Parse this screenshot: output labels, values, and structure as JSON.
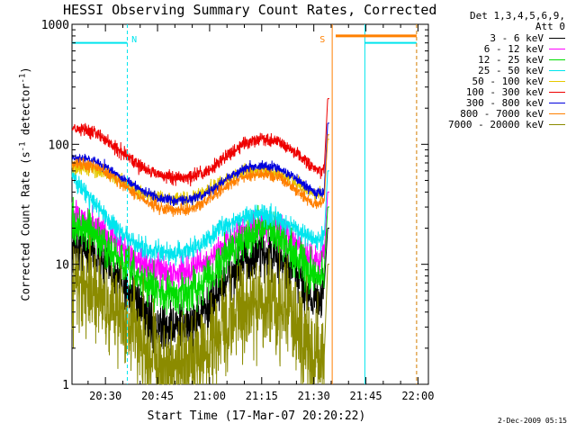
{
  "chart_data": {
    "type": "line",
    "title": "HESSI Observing Summary Count Rates, Corrected",
    "xlabel": "Start Time (17-Mar-07 20:20:22)",
    "ylabel_main": "Corrected Count Rate (s",
    "ylabel_sup1": "-1",
    "ylabel_mid": " detector",
    "ylabel_sup2": "-1",
    "ylabel_end": ")",
    "y_scale": "log",
    "ylim": [
      1,
      1000
    ],
    "xlim_minutes": [
      20.37,
      123.0
    ],
    "x_ticks": [
      {
        "label": "20:30",
        "min": 30
      },
      {
        "label": "20:45",
        "min": 45
      },
      {
        "label": "21:00",
        "min": 60
      },
      {
        "label": "21:15",
        "min": 75
      },
      {
        "label": "21:30",
        "min": 90
      },
      {
        "label": "21:45",
        "min": 105
      },
      {
        "label": "22:00",
        "min": 120
      }
    ],
    "y_ticks": [
      {
        "label": "1",
        "value": 1
      },
      {
        "label": "10",
        "value": 10
      },
      {
        "label": "100",
        "value": 100
      },
      {
        "label": "1000",
        "value": 1000
      }
    ],
    "legend_header": [
      "Det 1,3,4,5,6,9,",
      "Att 0"
    ],
    "series": [
      {
        "name": "3 - 6 keV",
        "color": "#000000",
        "m": [
          [
            20.4,
            14
          ],
          [
            26,
            13
          ],
          [
            30,
            10
          ],
          [
            35,
            7
          ],
          [
            40,
            4
          ],
          [
            45,
            3
          ],
          [
            50,
            3
          ],
          [
            55,
            3.2
          ],
          [
            60,
            4.5
          ],
          [
            65,
            7.5
          ],
          [
            70,
            10.5
          ],
          [
            75,
            12
          ],
          [
            80,
            11
          ],
          [
            85,
            8
          ],
          [
            88,
            6
          ],
          [
            91,
            5
          ],
          [
            93,
            6.5
          ],
          [
            94,
            20
          ]
        ],
        "noise": 0.15
      },
      {
        "name": "6 - 12 keV",
        "color": "#ff00ff",
        "m": [
          [
            20.4,
            26
          ],
          [
            26,
            22
          ],
          [
            30,
            18
          ],
          [
            35,
            14
          ],
          [
            40,
            10
          ],
          [
            45,
            9
          ],
          [
            50,
            8.5
          ],
          [
            55,
            9
          ],
          [
            60,
            11
          ],
          [
            65,
            15
          ],
          [
            70,
            19.5
          ],
          [
            75,
            21
          ],
          [
            80,
            19.5
          ],
          [
            85,
            15
          ],
          [
            88,
            12
          ],
          [
            91,
            10.5
          ],
          [
            93,
            12
          ],
          [
            94,
            40
          ]
        ],
        "noise": 0.09
      },
      {
        "name": "12 - 25 keV",
        "color": "#00dd00",
        "m": [
          [
            20.4,
            23
          ],
          [
            26,
            18
          ],
          [
            30,
            14
          ],
          [
            35,
            10
          ],
          [
            40,
            7.5
          ],
          [
            45,
            6
          ],
          [
            50,
            5.5
          ],
          [
            55,
            6
          ],
          [
            60,
            8
          ],
          [
            65,
            12
          ],
          [
            70,
            17
          ],
          [
            75,
            20
          ],
          [
            80,
            17
          ],
          [
            85,
            12
          ],
          [
            88,
            9
          ],
          [
            91,
            7.5
          ],
          [
            93,
            9
          ],
          [
            94,
            30
          ]
        ],
        "noise": 0.12
      },
      {
        "name": "25 - 50 keV",
        "color": "#00e5ee",
        "m": [
          [
            20.4,
            55
          ],
          [
            24,
            40
          ],
          [
            28,
            30
          ],
          [
            33,
            20
          ],
          [
            38,
            15
          ],
          [
            43,
            13
          ],
          [
            48,
            12
          ],
          [
            53,
            12.5
          ],
          [
            58,
            15
          ],
          [
            63,
            20
          ],
          [
            70,
            25
          ],
          [
            75,
            26
          ],
          [
            80,
            24
          ],
          [
            85,
            20
          ],
          [
            88,
            17
          ],
          [
            91,
            15.5
          ],
          [
            93,
            17
          ],
          [
            94,
            60
          ]
        ],
        "noise": 0.06
      },
      {
        "name": "50 - 100 keV",
        "color": "#e6c800",
        "m": [
          [
            20.4,
            65
          ],
          [
            26,
            62
          ],
          [
            30,
            57
          ],
          [
            35,
            48
          ],
          [
            40,
            40
          ],
          [
            45,
            36
          ],
          [
            50,
            35
          ],
          [
            55,
            36
          ],
          [
            60,
            42
          ],
          [
            65,
            52
          ],
          [
            70,
            60
          ],
          [
            75,
            62
          ],
          [
            80,
            57
          ],
          [
            85,
            47
          ],
          [
            88,
            41
          ],
          [
            91,
            38
          ],
          [
            93,
            40
          ],
          [
            94,
            110
          ]
        ],
        "noise": 0.04
      },
      {
        "name": "100 - 300 keV",
        "color": "#ee0000",
        "m": [
          [
            20.4,
            140
          ],
          [
            26,
            130
          ],
          [
            30,
            110
          ],
          [
            35,
            85
          ],
          [
            40,
            66
          ],
          [
            45,
            56
          ],
          [
            50,
            52
          ],
          [
            55,
            53
          ],
          [
            60,
            62
          ],
          [
            65,
            80
          ],
          [
            70,
            103
          ],
          [
            75,
            112
          ],
          [
            80,
            105
          ],
          [
            85,
            85
          ],
          [
            88,
            70
          ],
          [
            91,
            59
          ],
          [
            93,
            62
          ],
          [
            94,
            240
          ]
        ],
        "noise": 0.04
      },
      {
        "name": "300 - 800 keV",
        "color": "#0000dd",
        "m": [
          [
            20.4,
            77
          ],
          [
            26,
            74
          ],
          [
            30,
            65
          ],
          [
            35,
            52
          ],
          [
            40,
            42
          ],
          [
            45,
            36
          ],
          [
            50,
            34
          ],
          [
            55,
            35
          ],
          [
            60,
            40
          ],
          [
            65,
            52
          ],
          [
            70,
            63
          ],
          [
            75,
            67
          ],
          [
            80,
            63
          ],
          [
            85,
            52
          ],
          [
            88,
            44
          ],
          [
            91,
            39
          ],
          [
            93,
            41
          ],
          [
            94,
            150
          ]
        ],
        "noise": 0.03
      },
      {
        "name": "800 - 7000 keV",
        "color": "#ff8000",
        "m": [
          [
            20.4,
            70
          ],
          [
            26,
            67
          ],
          [
            30,
            59
          ],
          [
            35,
            46
          ],
          [
            40,
            36
          ],
          [
            45,
            30
          ],
          [
            50,
            28
          ],
          [
            55,
            29
          ],
          [
            60,
            35
          ],
          [
            65,
            45
          ],
          [
            70,
            54
          ],
          [
            75,
            57
          ],
          [
            80,
            53
          ],
          [
            85,
            42
          ],
          [
            88,
            35
          ],
          [
            91,
            31
          ],
          [
            93,
            33
          ],
          [
            94,
            120
          ]
        ],
        "noise": 0.035
      },
      {
        "name": "7000 - 20000 keV",
        "color": "#8b8b00",
        "m": [
          [
            20.4,
            6
          ],
          [
            26,
            6
          ],
          [
            30,
            5
          ],
          [
            35,
            3.5
          ],
          [
            40,
            2.4
          ],
          [
            45,
            1.6
          ],
          [
            50,
            1.3
          ],
          [
            55,
            1.4
          ],
          [
            60,
            2
          ],
          [
            65,
            3
          ],
          [
            70,
            4.5
          ],
          [
            75,
            5.3
          ],
          [
            80,
            4.7
          ],
          [
            85,
            3.2
          ],
          [
            88,
            2.2
          ],
          [
            91,
            1.6
          ],
          [
            93,
            1.7
          ],
          [
            94,
            10
          ]
        ],
        "noise": 0.3
      }
    ],
    "flag_lines": [
      {
        "name": "cyan",
        "color": "#00e5ee",
        "segments": [
          [
            20.4,
            36.3,
            700
          ],
          [
            104.7,
            119.6,
            700
          ]
        ],
        "verticals": [
          [
            36.3,
            "dashed"
          ],
          [
            104.7,
            "solid"
          ],
          [
            119.6,
            "dashed"
          ]
        ]
      },
      {
        "name": "orange",
        "color": "#ff8000",
        "segments": [
          [
            96.3,
            119.6,
            800
          ]
        ],
        "verticals": [
          [
            95.3,
            "solid"
          ],
          [
            119.6,
            "dashed"
          ]
        ]
      }
    ],
    "markers": [
      {
        "label": "N",
        "color": "#00e5ee",
        "min": 37.5
      },
      {
        "label": "S",
        "color": "#ff8000",
        "min": 91.7
      }
    ]
  },
  "footer": "2-Dec-2009 05:15"
}
